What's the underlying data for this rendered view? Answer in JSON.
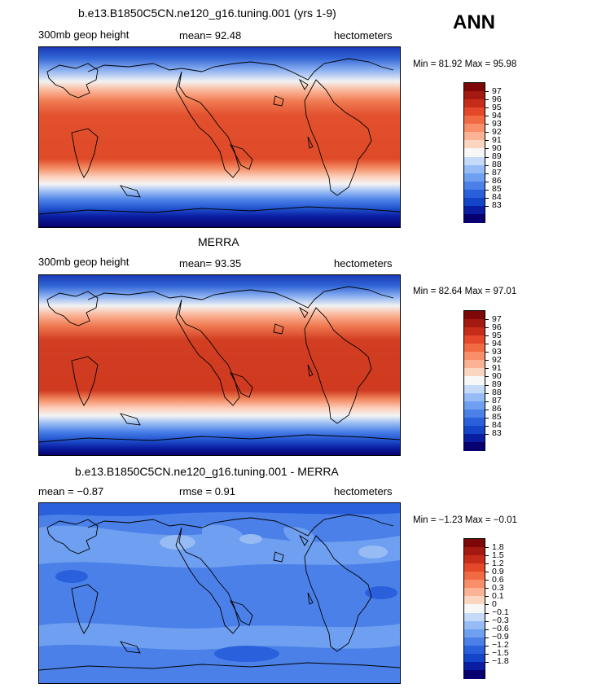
{
  "season": "ANN",
  "colors": {
    "abs_scale": [
      "#08006e",
      "#0a1ea3",
      "#1444c8",
      "#2a60dc",
      "#4a80e8",
      "#6e9ff0",
      "#97bcf5",
      "#c4daf8",
      "#f7f7f7",
      "#fcd5c0",
      "#fbb295",
      "#f88e6a",
      "#f26a43",
      "#e4472a",
      "#c72c1b",
      "#a41a10",
      "#7e0808"
    ],
    "diff_scale": [
      "#08006e",
      "#0a1ea3",
      "#1444c8",
      "#2a60dc",
      "#4a80e8",
      "#6e9ff0",
      "#97bcf5",
      "#c4daf8",
      "#f7f7f7",
      "#fcd5c0",
      "#fbb295",
      "#f88e6a",
      "#f26a43",
      "#e4472a",
      "#c72c1b",
      "#a41a10",
      "#7e0808"
    ],
    "land_outline": "#000000"
  },
  "panels": [
    {
      "id": "model",
      "title": "b.e13.B1850C5CN.ne120_g16.tuning.001 (yrs 1-9)",
      "left_label": "300mb geop height",
      "center_label": "mean=   92.48",
      "units": "hectometers",
      "minmax": "Min =   81.92  Max =   95.98",
      "colorbar_labels": [
        "97",
        "96",
        "95",
        "94",
        "93",
        "92",
        "91",
        "90",
        "89",
        "88",
        "87",
        "86",
        "85",
        "84",
        "83"
      ]
    },
    {
      "id": "obs",
      "title": "MERRA",
      "left_label": "300mb geop height",
      "center_label": "mean=   93.35",
      "units": "hectometers",
      "minmax": "Min =   82.64  Max =   97.01",
      "colorbar_labels": [
        "97",
        "96",
        "95",
        "94",
        "93",
        "92",
        "91",
        "90",
        "89",
        "88",
        "87",
        "86",
        "85",
        "84",
        "83"
      ]
    },
    {
      "id": "diff",
      "title": "b.e13.B1850C5CN.ne120_g16.tuning.001 - MERRA",
      "left_label": "mean =   −0.87",
      "center_label": "rmse =    0.91",
      "units": "hectometers",
      "minmax": "Min =   −1.23  Max =   −0.01",
      "colorbar_labels": [
        "1.8",
        "1.5",
        "1.2",
        "0.9",
        "0.6",
        "0.3",
        "0.1",
        "0",
        "−0.1",
        "−0.3",
        "−0.6",
        "−0.9",
        "−1.2",
        "−1.5",
        "−1.8"
      ]
    }
  ]
}
